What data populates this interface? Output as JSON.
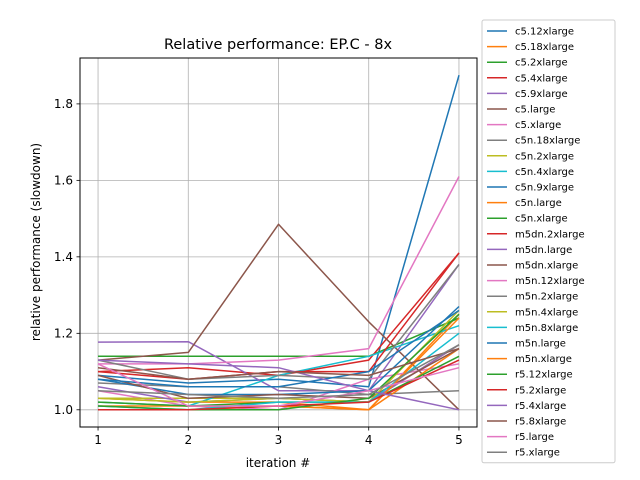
{
  "chart_data": {
    "type": "line",
    "title": "Relative performance: EP.C - 8x",
    "xlabel": "iteration #",
    "ylabel": "relative performance (slowdown)",
    "x": [
      1,
      2,
      3,
      4,
      5
    ],
    "xlim": [
      0.8,
      5.2
    ],
    "ylim": [
      0.955,
      1.92
    ],
    "xticks": [
      1,
      2,
      3,
      4,
      5
    ],
    "yticks": [
      1.0,
      1.2,
      1.4,
      1.6,
      1.8
    ],
    "ytick_labels": [
      "1.0",
      "1.2",
      "1.4",
      "1.6",
      "1.8"
    ],
    "grid": true,
    "legend_position": "outside-right",
    "series": [
      {
        "name": "c5.12xlarge",
        "color": "#1f77b4",
        "values": [
          1.09,
          1.07,
          1.08,
          1.06,
          1.875
        ]
      },
      {
        "name": "c5.18xlarge",
        "color": "#ff7f0e",
        "values": [
          1.03,
          1.02,
          1.02,
          1.0,
          1.25
        ]
      },
      {
        "name": "c5.2xlarge",
        "color": "#2ca02c",
        "values": [
          1.14,
          1.14,
          1.14,
          1.14,
          1.24
        ]
      },
      {
        "name": "c5.4xlarge",
        "color": "#d62728",
        "values": [
          1.1,
          1.11,
          1.09,
          1.13,
          1.41
        ]
      },
      {
        "name": "c5.9xlarge",
        "color": "#9467bd",
        "values": [
          1.177,
          1.178,
          1.05,
          1.05,
          1.38
        ]
      },
      {
        "name": "c5.large",
        "color": "#8c564b",
        "values": [
          1.13,
          1.15,
          1.485,
          1.23,
          1.0
        ]
      },
      {
        "name": "c5.xlarge",
        "color": "#e377c2",
        "values": [
          1.05,
          1.01,
          1.0,
          1.08,
          1.12
        ]
      },
      {
        "name": "c5n.18xlarge",
        "color": "#7f7f7f",
        "values": [
          1.07,
          1.06,
          1.06,
          1.04,
          1.05
        ]
      },
      {
        "name": "c5n.2xlarge",
        "color": "#bcbd22",
        "values": [
          1.03,
          1.03,
          1.03,
          1.02,
          1.17
        ]
      },
      {
        "name": "c5n.4xlarge",
        "color": "#17becf",
        "values": [
          1.02,
          1.01,
          1.09,
          1.14,
          1.22
        ]
      },
      {
        "name": "c5n.9xlarge",
        "color": "#1f77b4",
        "values": [
          1.08,
          1.04,
          1.04,
          1.05,
          1.27
        ]
      },
      {
        "name": "c5n.large",
        "color": "#ff7f0e",
        "values": [
          1.01,
          1.01,
          1.01,
          1.0,
          1.16
        ]
      },
      {
        "name": "c5n.xlarge",
        "color": "#2ca02c",
        "values": [
          1.02,
          1.01,
          1.02,
          1.02,
          1.14
        ]
      },
      {
        "name": "m5dn.2xlarge",
        "color": "#d62728",
        "values": [
          1.1,
          1.08,
          1.1,
          1.1,
          1.41
        ]
      },
      {
        "name": "m5dn.large",
        "color": "#9467bd",
        "values": [
          1.06,
          1.02,
          1.03,
          1.02,
          1.17
        ]
      },
      {
        "name": "m5dn.xlarge",
        "color": "#8c564b",
        "values": [
          1.09,
          1.03,
          1.04,
          1.03,
          1.16
        ]
      },
      {
        "name": "m5n.12xlarge",
        "color": "#e377c2",
        "values": [
          1.12,
          1.12,
          1.13,
          1.16,
          1.61
        ]
      },
      {
        "name": "m5n.2xlarge",
        "color": "#7f7f7f",
        "values": [
          1.13,
          1.08,
          1.09,
          1.08,
          1.38
        ]
      },
      {
        "name": "m5n.4xlarge",
        "color": "#bcbd22",
        "values": [
          1.03,
          1.02,
          1.03,
          1.02,
          1.26
        ]
      },
      {
        "name": "m5n.8xlarge",
        "color": "#17becf",
        "values": [
          1.01,
          1.0,
          1.02,
          1.02,
          1.2
        ]
      },
      {
        "name": "m5n.large",
        "color": "#1f77b4",
        "values": [
          1.08,
          1.06,
          1.06,
          1.1,
          1.26
        ]
      },
      {
        "name": "m5n.xlarge",
        "color": "#ff7f0e",
        "values": [
          1.0,
          1.0,
          1.01,
          1.0,
          1.24
        ]
      },
      {
        "name": "r5.12xlarge",
        "color": "#2ca02c",
        "values": [
          1.01,
          1.0,
          1.0,
          1.03,
          1.25
        ]
      },
      {
        "name": "r5.2xlarge",
        "color": "#d62728",
        "values": [
          1.0,
          1.0,
          1.01,
          1.02,
          1.13
        ]
      },
      {
        "name": "r5.4xlarge",
        "color": "#9467bd",
        "values": [
          1.13,
          1.12,
          1.11,
          1.05,
          1.0
        ]
      },
      {
        "name": "r5.8xlarge",
        "color": "#8c564b",
        "values": [
          1.11,
          1.08,
          1.1,
          1.09,
          1.16
        ]
      },
      {
        "name": "r5.large",
        "color": "#e377c2",
        "values": [
          1.12,
          1.01,
          1.01,
          1.05,
          1.11
        ]
      },
      {
        "name": "r5.xlarge",
        "color": "#7f7f7f",
        "values": [
          1.05,
          1.04,
          1.03,
          1.04,
          1.17
        ]
      }
    ]
  }
}
